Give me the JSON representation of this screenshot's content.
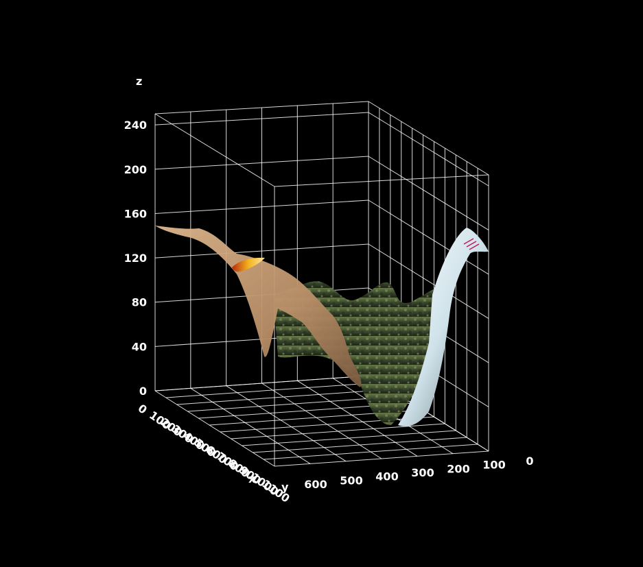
{
  "chart_data": {
    "type": "surface3d",
    "title": "",
    "background": "#000000",
    "axes": {
      "x": {
        "label": "x",
        "ticks": [
          "0",
          "100",
          "200",
          "300",
          "400",
          "500",
          "600",
          "700",
          "800",
          "900",
          "1000",
          "1100"
        ]
      },
      "y": {
        "label": "y",
        "ticks": [
          "600",
          "500",
          "400",
          "300",
          "200",
          "100",
          "0"
        ]
      },
      "z": {
        "label": "z",
        "ticks": [
          "0",
          "40",
          "80",
          "120",
          "160",
          "200",
          "240"
        ],
        "range": [
          0,
          250
        ]
      }
    },
    "grid": true,
    "colors": {
      "grid": "#ffffff",
      "foreground_ridge": "#c8a27c",
      "vegetation": "#4a5d37",
      "snow_peak": "#dfeef4",
      "highlight_patch": "#f2b21c"
    },
    "surface_features": [
      {
        "name": "ridge",
        "approx_height": 150
      },
      {
        "name": "valley",
        "approx_height": 20
      },
      {
        "name": "peak",
        "approx_height": 150
      }
    ]
  }
}
